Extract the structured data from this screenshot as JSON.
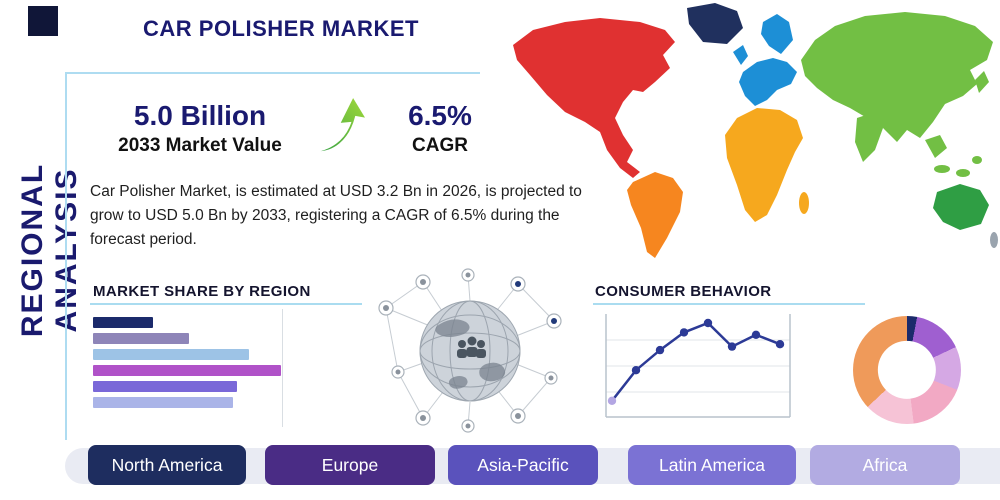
{
  "page": {
    "title": "CAR POLISHER MARKET",
    "side_label": "REGIONAL ANALYSIS"
  },
  "highlight": {
    "market_value": "5.0 Billion",
    "market_value_label": "2033 Market Value",
    "cagr_value": "6.5%",
    "cagr_label": "CAGR",
    "description": "Car Polisher Market, is estimated at USD 3.2 Bn in 2026, is projected to grow to USD 5.0 Bn by 2033, registering a CAGR of 6.5% during the forecast period."
  },
  "sections": {
    "market_share_title": "MARKET SHARE BY REGION",
    "consumer_behavior_title": "CONSUMER BEHAVIOR"
  },
  "regions": [
    {
      "label": "North America",
      "color": "#1e2d5f"
    },
    {
      "label": "Europe",
      "color": "#4a2c85"
    },
    {
      "label": "Asia-Pacific",
      "color": "#5a52bc"
    },
    {
      "label": "Latin America",
      "color": "#7b72d4"
    },
    {
      "label": "Africa",
      "color": "#b2abe2"
    }
  ],
  "map": {
    "colors": {
      "north_america": "#e03131",
      "greenland": "#20305e",
      "south_america": "#f6861f",
      "europe": "#1d8fd6",
      "africa": "#f6a81e",
      "asia": "#72bf44",
      "australia": "#2f9e44",
      "islands": "#9aa4ae"
    }
  },
  "chart_data": [
    {
      "type": "bar",
      "orientation": "horizontal",
      "title": "Market Share by Region",
      "categories": [
        "1",
        "2",
        "3",
        "4",
        "5",
        "6"
      ],
      "categories_unlabeled": true,
      "values": [
        15,
        24,
        39,
        47,
        36,
        35
      ],
      "colors": [
        "#1b2a6b",
        "#8e85b8",
        "#9dc3e6",
        "#b052c8",
        "#7a68d8",
        "#aab4e8"
      ],
      "xlim": [
        0,
        50
      ],
      "grid": "single-vertical-line"
    },
    {
      "type": "line",
      "title": "Consumer Behavior",
      "x": [
        1,
        2,
        3,
        4,
        5,
        6,
        7,
        8
      ],
      "values": [
        12,
        38,
        55,
        70,
        78,
        58,
        68,
        60
      ],
      "color": "#2c3a96",
      "first_marker_color": "#b3a6e3",
      "grid": "horizontal-lines",
      "legend": "none"
    },
    {
      "type": "pie",
      "title": "Regional Share Donut",
      "labels": [
        "segment-1",
        "segment-2",
        "segment-3",
        "segment-4",
        "segment-5",
        "segment-6"
      ],
      "values": [
        3,
        15,
        13,
        17,
        15,
        37
      ],
      "colors": [
        "#1b2a6b",
        "#9f5fd0",
        "#d5a8e4",
        "#f2a9c4",
        "#f6c3d6",
        "#ef9a5a"
      ],
      "donut": true
    }
  ]
}
